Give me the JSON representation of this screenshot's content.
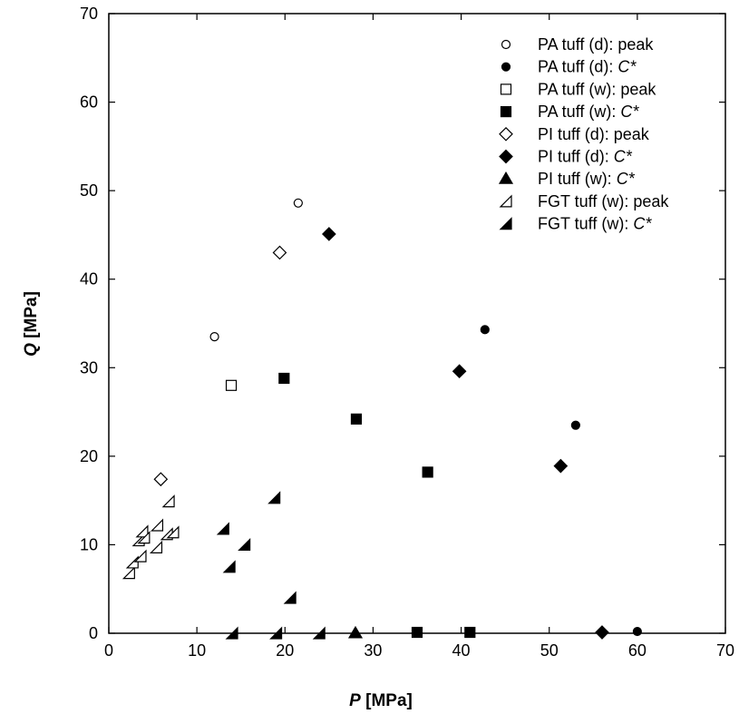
{
  "chart_data": {
    "type": "scatter",
    "xlabel": {
      "var": "P",
      "unit": " [MPa]"
    },
    "ylabel": {
      "var": "Q",
      "unit": " [MPa]"
    },
    "xlim": [
      0,
      70
    ],
    "ylim": [
      0,
      70
    ],
    "xticks": [
      "0",
      "10",
      "20",
      "30",
      "40",
      "50",
      "60",
      "70"
    ],
    "yticks": [
      "0",
      "10",
      "20",
      "30",
      "40",
      "50",
      "60",
      "70"
    ],
    "grid": false,
    "legend_position": "top-right",
    "series": [
      {
        "name": "PA tuff (d): peak",
        "label_main": "PA tuff (d): ",
        "label_ital": "",
        "label_tail": "peak",
        "marker": "circle-open",
        "points": [
          [
            12.0,
            33.5
          ],
          [
            21.5,
            48.6
          ]
        ]
      },
      {
        "name": "PA tuff (d): C*",
        "label_main": "PA tuff (d): ",
        "label_ital": "C*",
        "label_tail": "",
        "marker": "circle-filled",
        "points": [
          [
            42.7,
            34.3
          ],
          [
            53.0,
            23.5
          ],
          [
            60.0,
            0.2
          ]
        ]
      },
      {
        "name": "PA tuff (w): peak",
        "label_main": "PA tuff (w): ",
        "label_ital": "",
        "label_tail": "peak",
        "marker": "square-open",
        "points": [
          [
            13.9,
            28.0
          ]
        ]
      },
      {
        "name": "PA tuff (w): C*",
        "label_main": "PA tuff (w): ",
        "label_ital": "C*",
        "label_tail": "",
        "marker": "square-filled",
        "points": [
          [
            19.9,
            28.8
          ],
          [
            28.1,
            24.2
          ],
          [
            36.2,
            18.2
          ],
          [
            35.0,
            0.1
          ],
          [
            41.0,
            0.1
          ]
        ]
      },
      {
        "name": "PI tuff (d): peak",
        "label_main": "PI tuff (d): ",
        "label_ital": "",
        "label_tail": "peak",
        "marker": "diamond-open",
        "points": [
          [
            5.9,
            17.4
          ],
          [
            19.4,
            43.0
          ]
        ]
      },
      {
        "name": "PI tuff (d): C*",
        "label_main": "PI tuff (d): ",
        "label_ital": "C*",
        "label_tail": "",
        "marker": "diamond-filled",
        "points": [
          [
            25.0,
            45.1
          ],
          [
            39.8,
            29.6
          ],
          [
            51.3,
            18.9
          ],
          [
            56.0,
            0.1
          ]
        ]
      },
      {
        "name": "PI tuff (w): C*",
        "label_main": "PI tuff (w): ",
        "label_ital": "C*",
        "label_tail": "",
        "marker": "triangle-filled",
        "points": [
          [
            28.0,
            0.0
          ]
        ]
      },
      {
        "name": "FGT tuff (w): peak",
        "label_main": "FGT tuff (w): ",
        "label_ital": "",
        "label_tail": "peak",
        "marker": "halftri-open",
        "points": [
          [
            2.3,
            6.8
          ],
          [
            2.7,
            8.0
          ],
          [
            3.4,
            10.5
          ],
          [
            3.8,
            11.5
          ],
          [
            3.6,
            8.7
          ],
          [
            4.0,
            10.8
          ],
          [
            5.4,
            9.7
          ],
          [
            5.5,
            12.2
          ],
          [
            6.6,
            11.2
          ],
          [
            6.8,
            14.9
          ],
          [
            7.3,
            11.4
          ]
        ]
      },
      {
        "name": "FGT tuff (w): C*",
        "label_main": "FGT tuff (w): ",
        "label_ital": "C*",
        "label_tail": "",
        "marker": "halftri-filled",
        "points": [
          [
            13.0,
            11.8
          ],
          [
            13.7,
            7.5
          ],
          [
            15.4,
            10.0
          ],
          [
            18.8,
            15.3
          ],
          [
            20.6,
            4.0
          ],
          [
            14.0,
            0.0
          ],
          [
            19.0,
            0.0
          ],
          [
            23.9,
            0.0
          ]
        ]
      }
    ]
  }
}
